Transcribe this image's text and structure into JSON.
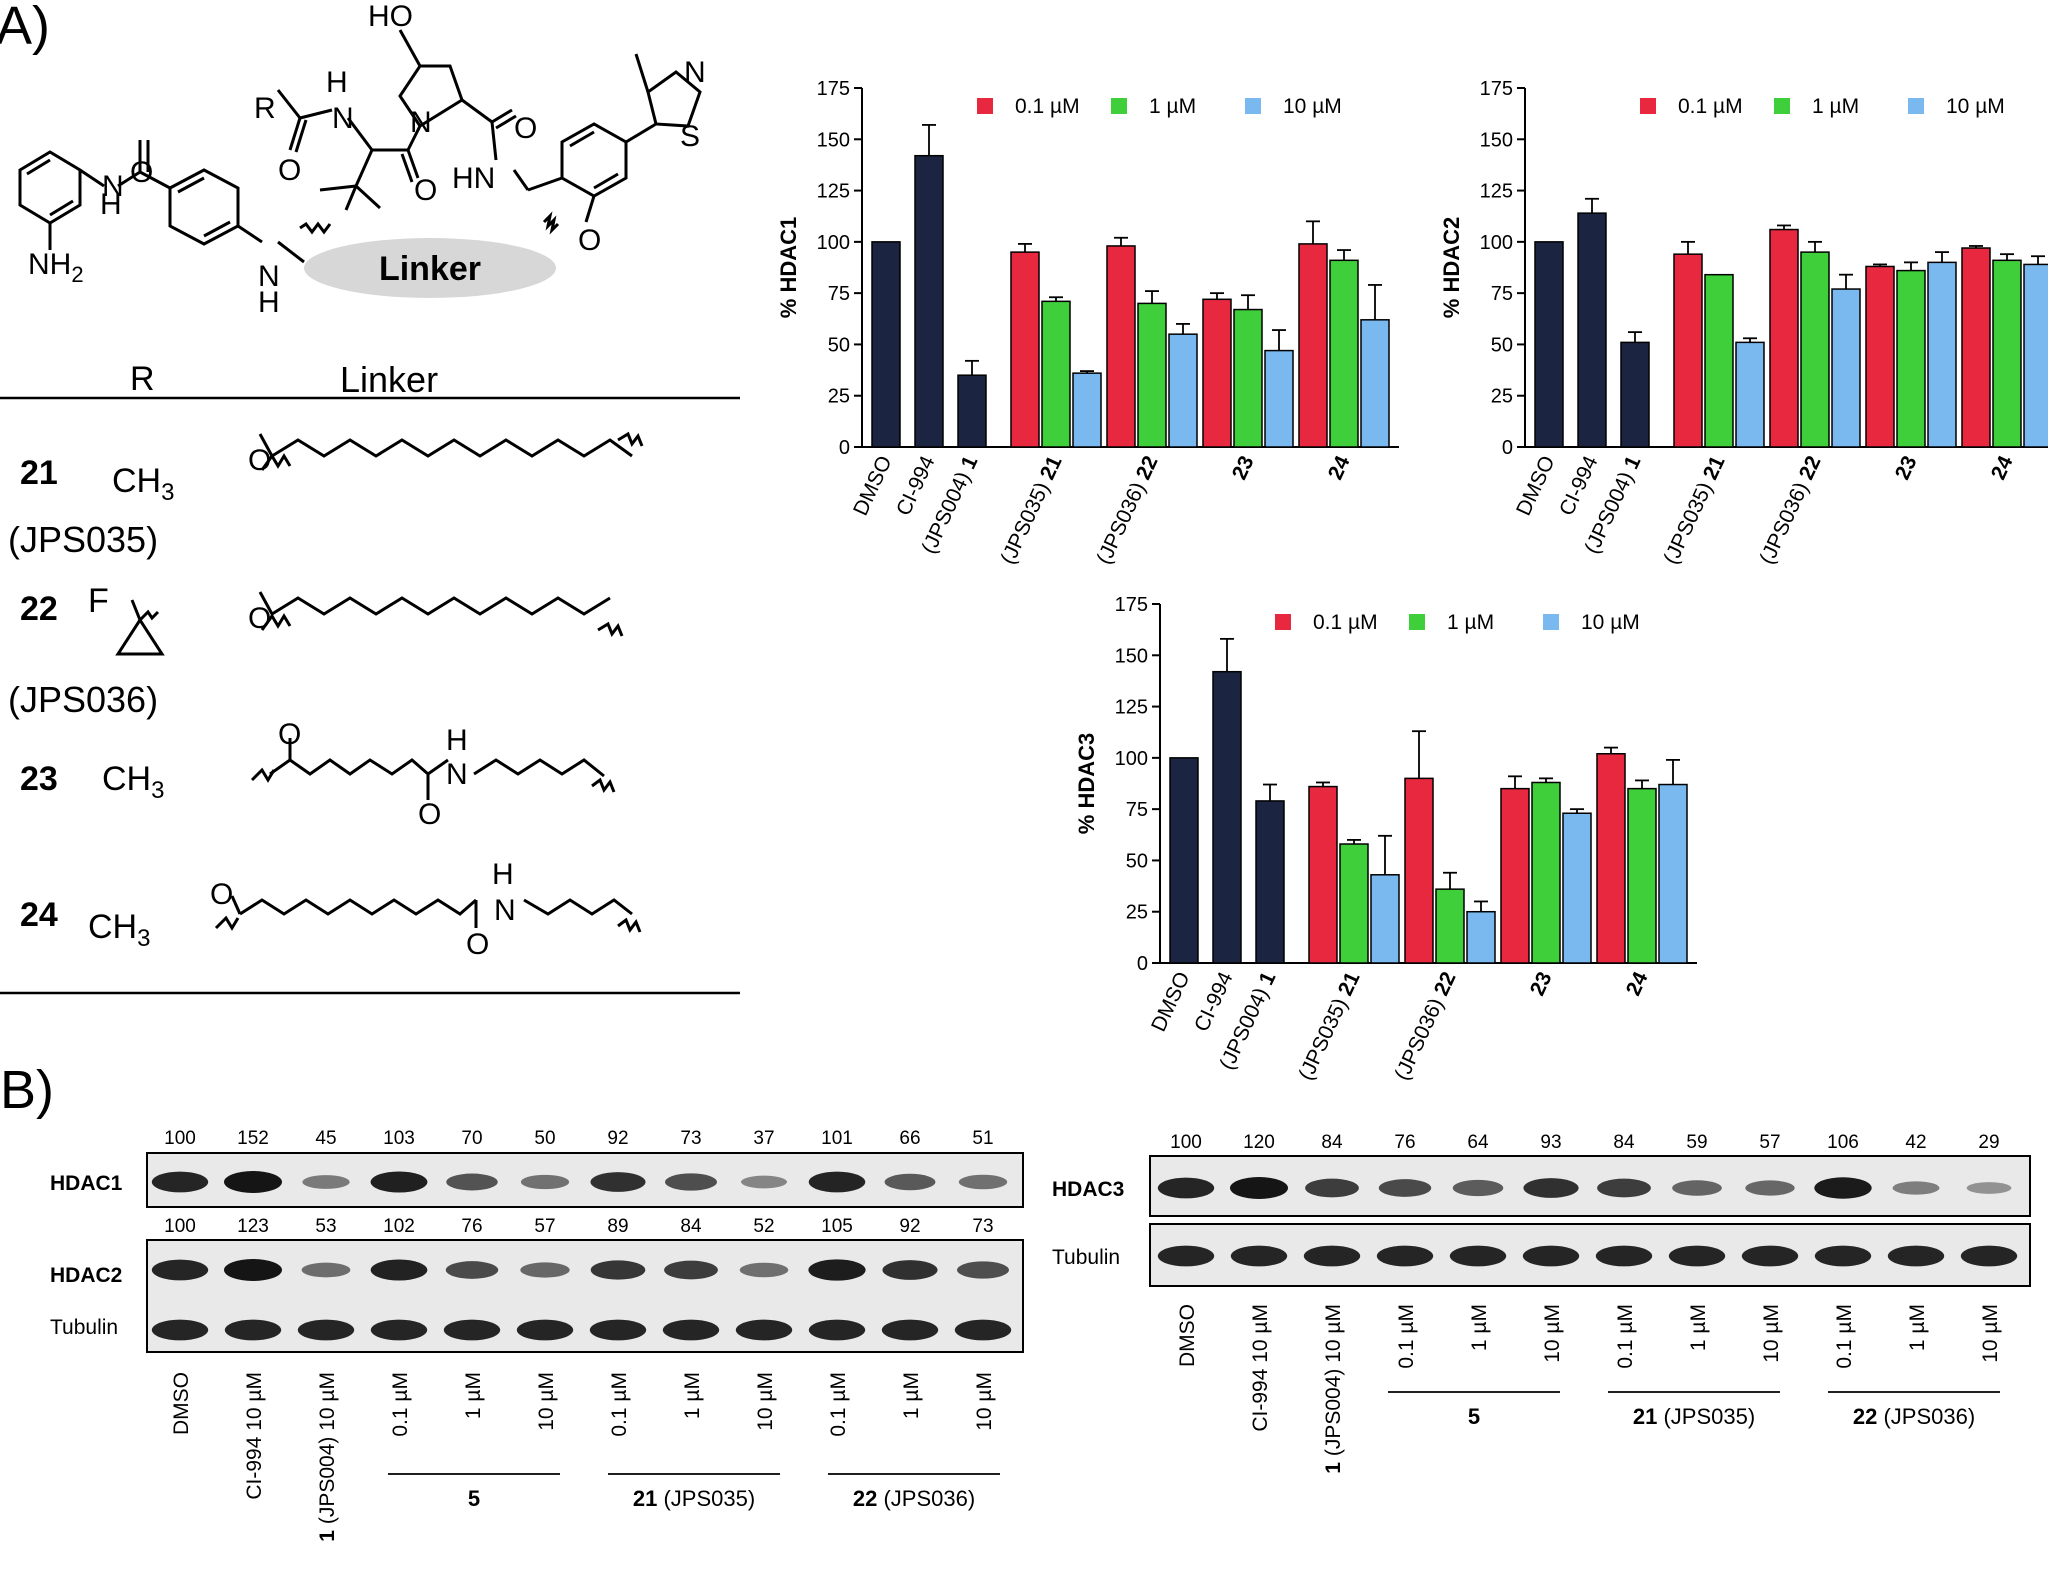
{
  "panel_labels": {
    "a": "A)",
    "b": "B)"
  },
  "colors": {
    "control": "#1b2440",
    "c01": "#e8283f",
    "c1": "#3ecf3a",
    "c10": "#79b9f0",
    "axis": "#000000",
    "blot_bg": "#e9e9e9",
    "band": "#151515"
  },
  "structure": {
    "linker_label": "Linker",
    "ho": "HO",
    "r": "R",
    "h": "H",
    "n": "N",
    "o": "O",
    "nh2": "NH",
    "nh2_sub": "2",
    "s": "S",
    "hn": "HN",
    "f": "F"
  },
  "table": {
    "header_r": "R",
    "header_linker": "Linker",
    "rows": [
      {
        "num": "21",
        "r": "CH",
        "r_sub": "3",
        "name": "(JPS035)"
      },
      {
        "num": "22",
        "r": "F",
        "r_sub": "",
        "name": "(JPS036)"
      },
      {
        "num": "23",
        "r": "CH",
        "r_sub": "3",
        "name": ""
      },
      {
        "num": "24",
        "r": "CH",
        "r_sub": "3",
        "name": ""
      }
    ]
  },
  "chart_data": [
    {
      "type": "bar",
      "ylabel": "% HDAC1",
      "ylim": [
        0,
        175
      ],
      "yticks": [
        0,
        25,
        50,
        75,
        100,
        125,
        150,
        175
      ],
      "legend": {
        "placement": "top-right",
        "entries": [
          "0.1 µM",
          "1 µM",
          "10 µM"
        ]
      },
      "controls": [
        {
          "label": "DMSO",
          "value": 100,
          "err": 0
        },
        {
          "label": "CI-994",
          "value": 142,
          "err": 15
        },
        {
          "label_pre": "(JPS004) ",
          "label_bold": "1",
          "value": 35,
          "err": 7
        }
      ],
      "groups": [
        {
          "label_pre": "(JPS035) ",
          "label_bold": "21",
          "values": [
            95,
            71,
            36
          ],
          "errs": [
            4,
            2,
            1
          ]
        },
        {
          "label_pre": "(JPS036) ",
          "label_bold": "22",
          "values": [
            98,
            70,
            55
          ],
          "errs": [
            4,
            6,
            5
          ]
        },
        {
          "label_pre": "",
          "label_bold": "23",
          "values": [
            72,
            67,
            47
          ],
          "errs": [
            3,
            7,
            10
          ]
        },
        {
          "label_pre": "",
          "label_bold": "24",
          "values": [
            99,
            91,
            62
          ],
          "errs": [
            11,
            5,
            17
          ]
        }
      ]
    },
    {
      "type": "bar",
      "ylabel": "% HDAC2",
      "ylim": [
        0,
        175
      ],
      "yticks": [
        0,
        25,
        50,
        75,
        100,
        125,
        150,
        175
      ],
      "legend": {
        "placement": "top-right",
        "entries": [
          "0.1 µM",
          "1 µM",
          "10 µM"
        ]
      },
      "controls": [
        {
          "label": "DMSO",
          "value": 100,
          "err": 0
        },
        {
          "label": "CI-994",
          "value": 114,
          "err": 7
        },
        {
          "label_pre": "(JPS004) ",
          "label_bold": "1",
          "value": 51,
          "err": 5
        }
      ],
      "groups": [
        {
          "label_pre": "(JPS035) ",
          "label_bold": "21",
          "values": [
            94,
            84,
            51
          ],
          "errs": [
            6,
            0,
            2
          ]
        },
        {
          "label_pre": "(JPS036) ",
          "label_bold": "22",
          "values": [
            106,
            95,
            77
          ],
          "errs": [
            2,
            5,
            7
          ]
        },
        {
          "label_pre": "",
          "label_bold": "23",
          "values": [
            88,
            86,
            90
          ],
          "errs": [
            1,
            4,
            5
          ]
        },
        {
          "label_pre": "",
          "label_bold": "24",
          "values": [
            97,
            91,
            89
          ],
          "errs": [
            1,
            3,
            4
          ]
        }
      ]
    },
    {
      "type": "bar",
      "ylabel": "% HDAC3",
      "ylim": [
        0,
        175
      ],
      "yticks": [
        0,
        25,
        50,
        75,
        100,
        125,
        150,
        175
      ],
      "legend": {
        "placement": "top-right",
        "entries": [
          "0.1 µM",
          "1 µM",
          "10 µM"
        ]
      },
      "controls": [
        {
          "label": "DMSO",
          "value": 100,
          "err": 0
        },
        {
          "label": "CI-994",
          "value": 142,
          "err": 16
        },
        {
          "label_pre": "(JPS004) ",
          "label_bold": "1",
          "value": 79,
          "err": 8
        }
      ],
      "groups": [
        {
          "label_pre": "(JPS035) ",
          "label_bold": "21",
          "values": [
            86,
            58,
            43
          ],
          "errs": [
            2,
            2,
            19
          ]
        },
        {
          "label_pre": "(JPS036) ",
          "label_bold": "22",
          "values": [
            90,
            36,
            25
          ],
          "errs": [
            23,
            8,
            5
          ]
        },
        {
          "label_pre": "",
          "label_bold": "23",
          "values": [
            85,
            88,
            73
          ],
          "errs": [
            6,
            2,
            2
          ]
        },
        {
          "label_pre": "",
          "label_bold": "24",
          "values": [
            102,
            85,
            87
          ],
          "errs": [
            3,
            4,
            12
          ]
        }
      ]
    }
  ],
  "blots": {
    "left": {
      "hdac1_label": "HDAC1",
      "hdac2_label": "HDAC2",
      "tubulin_label": "Tubulin",
      "hdac1_values": [
        "100",
        "152",
        "45",
        "103",
        "70",
        "50",
        "92",
        "73",
        "37",
        "101",
        "66",
        "51"
      ],
      "hdac2_values": [
        "100",
        "123",
        "53",
        "102",
        "76",
        "57",
        "89",
        "84",
        "52",
        "105",
        "92",
        "73"
      ],
      "hdac1_intensity": [
        100,
        152,
        45,
        103,
        70,
        50,
        92,
        73,
        37,
        101,
        66,
        51
      ],
      "hdac2_intensity": [
        100,
        123,
        53,
        102,
        76,
        57,
        89,
        84,
        52,
        105,
        92,
        73
      ],
      "lane_labels": [
        {
          "pre": "",
          "bold": "",
          "text": "DMSO"
        },
        {
          "pre": "",
          "bold": "",
          "text": "CI-994 10 µM"
        },
        {
          "pre": "",
          "bold": "1",
          "text": " (JPS004) 10 µM"
        },
        {
          "bold": "",
          "text": "0.1 µM"
        },
        {
          "bold": "",
          "text": "1 µM"
        },
        {
          "bold": "",
          "text": "10 µM"
        },
        {
          "bold": "",
          "text": "0.1 µM"
        },
        {
          "bold": "",
          "text": "1 µM"
        },
        {
          "bold": "",
          "text": "10 µM"
        },
        {
          "bold": "",
          "text": "0.1 µM"
        },
        {
          "bold": "",
          "text": "1 µM"
        },
        {
          "bold": "",
          "text": "10 µM"
        }
      ],
      "group_labels": [
        {
          "bold": "5",
          "text": ""
        },
        {
          "bold": "21",
          "text": " (JPS035)"
        },
        {
          "bold": "22",
          "text": " (JPS036)"
        }
      ]
    },
    "right": {
      "hdac3_label": "HDAC3",
      "tubulin_label": "Tubulin",
      "hdac3_values": [
        "100",
        "120",
        "84",
        "76",
        "64",
        "93",
        "84",
        "59",
        "57",
        "106",
        "42",
        "29"
      ],
      "hdac3_intensity": [
        100,
        120,
        84,
        76,
        64,
        93,
        84,
        59,
        57,
        106,
        42,
        29
      ],
      "lane_labels": [
        {
          "bold": "",
          "text": "DMSO"
        },
        {
          "bold": "",
          "text": "CI-994 10 µM"
        },
        {
          "bold": "1",
          "text": " (JPS004) 10 µM"
        },
        {
          "bold": "",
          "text": "0.1 µM"
        },
        {
          "bold": "",
          "text": "1 µM"
        },
        {
          "bold": "",
          "text": "10 µM"
        },
        {
          "bold": "",
          "text": "0.1 µM"
        },
        {
          "bold": "",
          "text": "1 µM"
        },
        {
          "bold": "",
          "text": "10 µM"
        },
        {
          "bold": "",
          "text": "0.1 µM"
        },
        {
          "bold": "",
          "text": "1 µM"
        },
        {
          "bold": "",
          "text": "10 µM"
        }
      ],
      "group_labels": [
        {
          "bold": "5",
          "text": ""
        },
        {
          "bold": "21",
          "text": " (JPS035)"
        },
        {
          "bold": "22",
          "text": " (JPS036)"
        }
      ]
    }
  }
}
